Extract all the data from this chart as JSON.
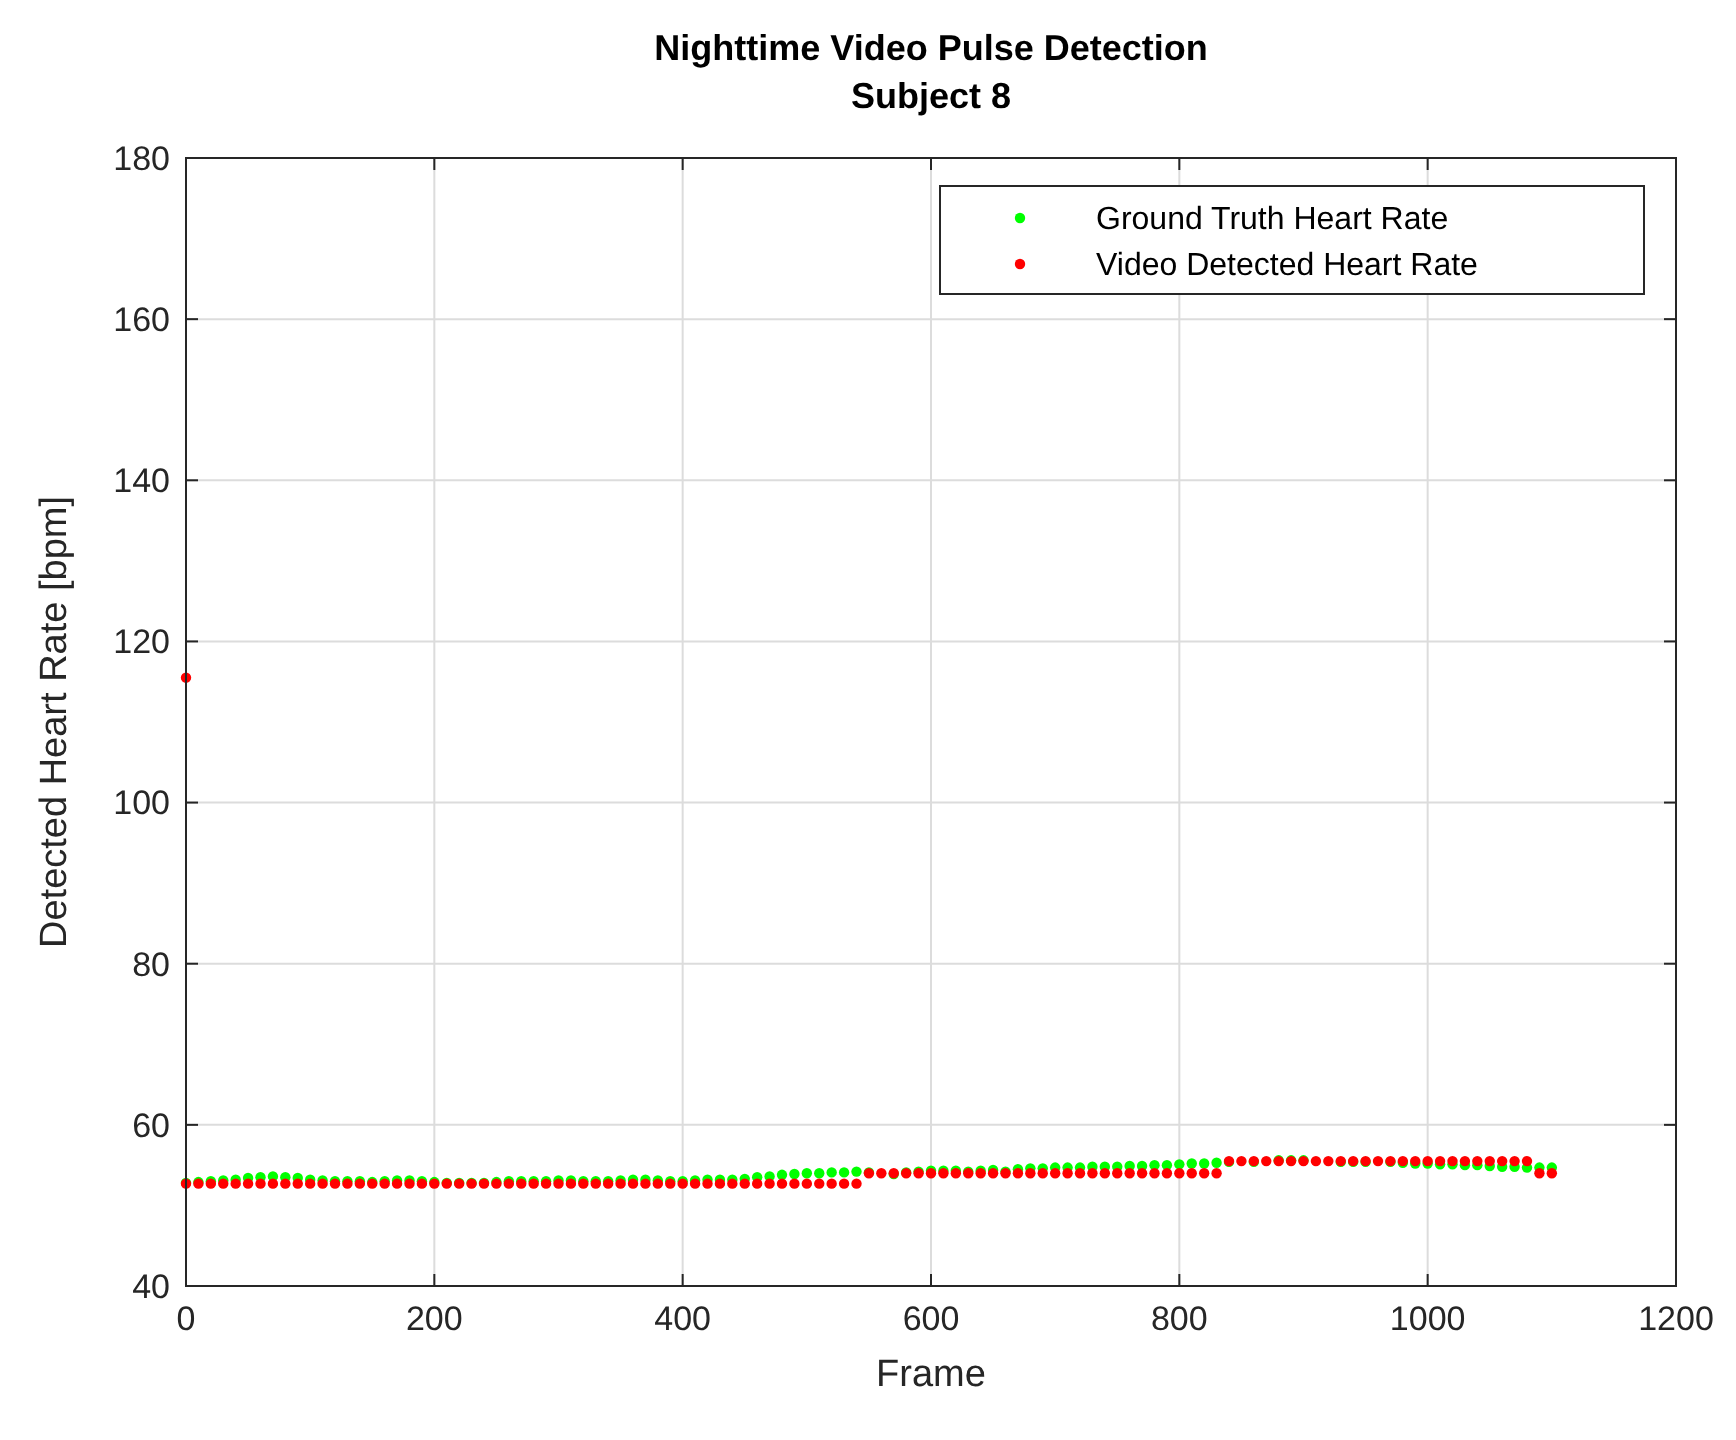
{
  "chart_data": {
    "type": "scatter",
    "title": "Nighttime Video Pulse Detection",
    "subtitle": "Subject 8",
    "xlabel": "Frame",
    "ylabel": "Detected Heart Rate [bpm]",
    "xlim": [
      0,
      1200
    ],
    "xticks": [
      0,
      200,
      400,
      600,
      800,
      1000,
      1200
    ],
    "ylim": [
      40,
      180
    ],
    "yticks": [
      40,
      60,
      80,
      100,
      120,
      140,
      160,
      180
    ],
    "grid": true,
    "legend": "top right",
    "marker": "circle",
    "series": [
      {
        "name": "Ground Truth Heart Rate",
        "color": "#00ff00",
        "x": [
          0,
          10,
          20,
          30,
          40,
          50,
          60,
          70,
          80,
          90,
          100,
          110,
          120,
          130,
          140,
          150,
          160,
          170,
          180,
          190,
          200,
          210,
          220,
          230,
          240,
          250,
          260,
          270,
          280,
          290,
          300,
          310,
          320,
          330,
          340,
          350,
          360,
          370,
          380,
          390,
          400,
          410,
          420,
          430,
          440,
          450,
          460,
          470,
          480,
          490,
          500,
          510,
          520,
          530,
          540,
          550,
          570,
          580,
          590,
          600,
          610,
          620,
          630,
          640,
          650,
          660,
          670,
          680,
          690,
          700,
          710,
          720,
          730,
          740,
          750,
          760,
          770,
          780,
          790,
          800,
          810,
          820,
          830,
          840,
          860,
          880,
          890,
          900,
          930,
          940,
          950,
          970,
          980,
          990,
          1000,
          1010,
          1020,
          1030,
          1040,
          1050,
          1060,
          1070,
          1080,
          1090,
          1100
        ],
        "values": [
          52.8,
          52.9,
          53.0,
          53.1,
          53.2,
          53.4,
          53.5,
          53.6,
          53.5,
          53.4,
          53.2,
          53.1,
          53.0,
          53.0,
          53.0,
          52.9,
          53.0,
          53.1,
          53.1,
          53.0,
          52.9,
          52.8,
          52.8,
          52.8,
          52.8,
          52.9,
          53.0,
          53.0,
          53.0,
          53.0,
          53.1,
          53.1,
          53.0,
          53.0,
          53.0,
          53.1,
          53.2,
          53.2,
          53.1,
          53.0,
          53.0,
          53.1,
          53.2,
          53.2,
          53.2,
          53.3,
          53.5,
          53.6,
          53.8,
          53.9,
          54.0,
          54.0,
          54.1,
          54.1,
          54.2,
          54.1,
          53.9,
          54.1,
          54.2,
          54.3,
          54.3,
          54.3,
          54.2,
          54.3,
          54.4,
          54.2,
          54.5,
          54.6,
          54.6,
          54.7,
          54.7,
          54.7,
          54.8,
          54.8,
          54.8,
          54.9,
          54.9,
          55.0,
          55.0,
          55.1,
          55.2,
          55.2,
          55.3,
          55.4,
          55.4,
          55.6,
          55.6,
          55.6,
          55.4,
          55.4,
          55.4,
          55.4,
          55.3,
          55.2,
          55.2,
          55.1,
          55.1,
          55.0,
          55.0,
          54.9,
          54.8,
          54.8,
          54.7,
          54.7,
          54.7
        ]
      },
      {
        "name": "Video Detected Heart Rate",
        "color": "#ff0000",
        "x": [
          0,
          0,
          10,
          20,
          30,
          40,
          50,
          60,
          70,
          80,
          90,
          100,
          110,
          120,
          130,
          140,
          150,
          160,
          170,
          180,
          190,
          200,
          210,
          220,
          230,
          240,
          250,
          260,
          270,
          280,
          290,
          300,
          310,
          320,
          330,
          340,
          350,
          360,
          370,
          380,
          390,
          400,
          410,
          420,
          430,
          440,
          450,
          460,
          470,
          480,
          490,
          500,
          510,
          520,
          530,
          540,
          550,
          560,
          570,
          580,
          590,
          600,
          610,
          620,
          630,
          640,
          650,
          660,
          670,
          680,
          690,
          700,
          710,
          720,
          730,
          740,
          750,
          760,
          770,
          780,
          790,
          800,
          810,
          820,
          830,
          840,
          850,
          860,
          870,
          880,
          890,
          900,
          910,
          920,
          930,
          940,
          950,
          960,
          970,
          980,
          990,
          1000,
          1010,
          1020,
          1030,
          1040,
          1050,
          1060,
          1070,
          1080,
          1090,
          1100
        ],
        "values": [
          115.5,
          52.7,
          52.7,
          52.7,
          52.7,
          52.7,
          52.7,
          52.7,
          52.7,
          52.7,
          52.7,
          52.7,
          52.7,
          52.7,
          52.7,
          52.7,
          52.7,
          52.7,
          52.7,
          52.7,
          52.7,
          52.7,
          52.7,
          52.7,
          52.7,
          52.7,
          52.7,
          52.7,
          52.7,
          52.7,
          52.7,
          52.7,
          52.7,
          52.7,
          52.7,
          52.7,
          52.7,
          52.7,
          52.7,
          52.7,
          52.7,
          52.7,
          52.7,
          52.7,
          52.7,
          52.7,
          52.7,
          52.7,
          52.7,
          52.7,
          52.7,
          52.7,
          52.7,
          52.7,
          52.7,
          52.7,
          54.0,
          54.0,
          54.0,
          54.0,
          54.0,
          54.0,
          54.0,
          54.0,
          54.0,
          54.0,
          54.0,
          54.0,
          54.0,
          54.0,
          54.0,
          54.0,
          54.0,
          54.0,
          54.0,
          54.0,
          54.0,
          54.0,
          54.0,
          54.0,
          54.0,
          54.0,
          54.0,
          54.0,
          54.0,
          55.5,
          55.5,
          55.5,
          55.5,
          55.5,
          55.5,
          55.5,
          55.5,
          55.5,
          55.5,
          55.5,
          55.5,
          55.5,
          55.5,
          55.5,
          55.5,
          55.5,
          55.5,
          55.5,
          55.5,
          55.5,
          55.5,
          55.5,
          55.5,
          55.5,
          54.0,
          54.0
        ]
      }
    ]
  }
}
